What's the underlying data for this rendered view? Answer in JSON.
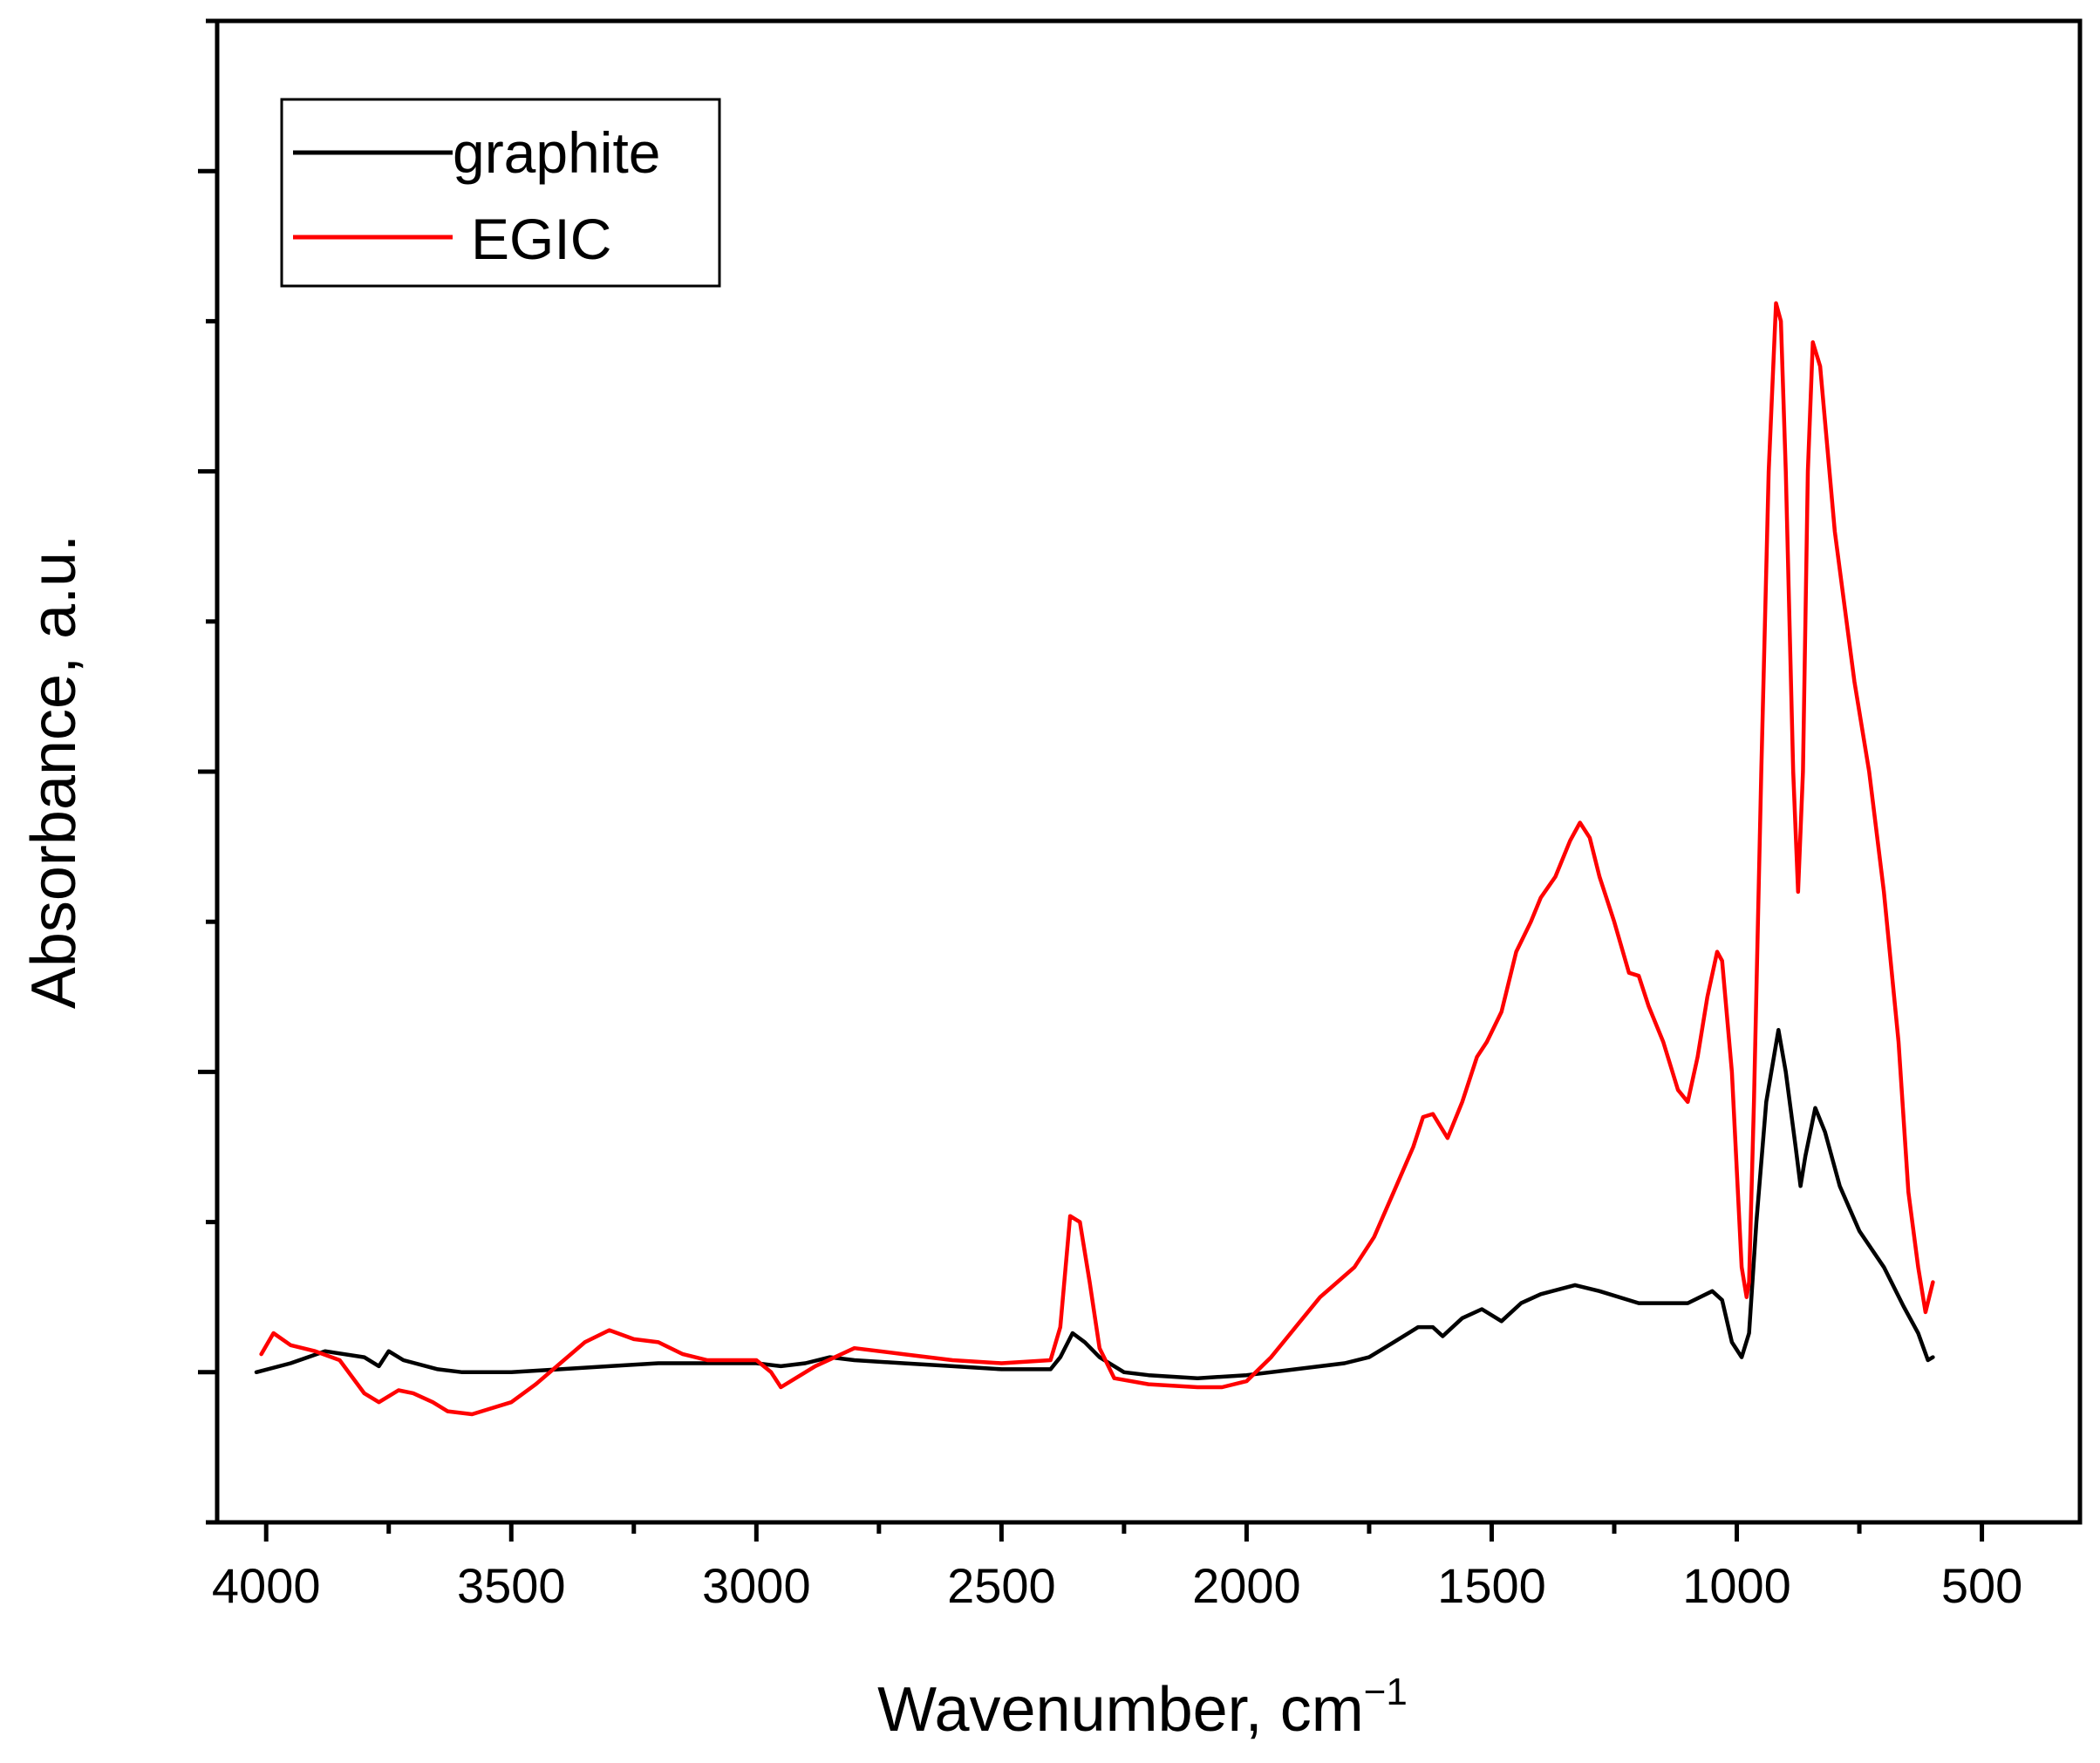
{
  "chart_data": {
    "type": "line",
    "title": "",
    "xlabel": "Wavenumber, cm",
    "xlabel_superscript": "−1",
    "ylabel": "Absorbance, a.u.",
    "xlim": [
      4100,
      300
    ],
    "ylim": [
      -0.5,
      4.5
    ],
    "x_reversed": true,
    "x_ticks": [
      4000,
      3500,
      3000,
      2500,
      2000,
      1500,
      1000,
      500
    ],
    "x_tick_labels": [
      "4000",
      "3500",
      "3000",
      "2500",
      "2000",
      "1500",
      "1000",
      "500"
    ],
    "y_tick_labels_shown": false,
    "grid": false,
    "legend": {
      "position": "top-left",
      "entries": [
        "graphite",
        "EGIC"
      ]
    },
    "series": [
      {
        "name": "graphite",
        "color": "#000000",
        "points": [
          [
            4020,
            0.0
          ],
          [
            3950,
            0.03
          ],
          [
            3880,
            0.07
          ],
          [
            3800,
            0.05
          ],
          [
            3770,
            0.02
          ],
          [
            3750,
            0.07
          ],
          [
            3720,
            0.04
          ],
          [
            3650,
            0.01
          ],
          [
            3600,
            0.0
          ],
          [
            3500,
            0.0
          ],
          [
            3400,
            0.01
          ],
          [
            3300,
            0.02
          ],
          [
            3200,
            0.03
          ],
          [
            3100,
            0.03
          ],
          [
            3000,
            0.03
          ],
          [
            2950,
            0.02
          ],
          [
            2900,
            0.03
          ],
          [
            2850,
            0.05
          ],
          [
            2800,
            0.04
          ],
          [
            2700,
            0.03
          ],
          [
            2600,
            0.02
          ],
          [
            2500,
            0.01
          ],
          [
            2400,
            0.01
          ],
          [
            2380,
            0.05
          ],
          [
            2355,
            0.13
          ],
          [
            2330,
            0.1
          ],
          [
            2300,
            0.05
          ],
          [
            2250,
            0.0
          ],
          [
            2200,
            -0.01
          ],
          [
            2100,
            -0.02
          ],
          [
            2000,
            -0.01
          ],
          [
            1900,
            0.01
          ],
          [
            1800,
            0.03
          ],
          [
            1750,
            0.05
          ],
          [
            1700,
            0.1
          ],
          [
            1650,
            0.15
          ],
          [
            1620,
            0.15
          ],
          [
            1600,
            0.12
          ],
          [
            1560,
            0.18
          ],
          [
            1520,
            0.21
          ],
          [
            1480,
            0.17
          ],
          [
            1440,
            0.23
          ],
          [
            1400,
            0.26
          ],
          [
            1330,
            0.29
          ],
          [
            1280,
            0.27
          ],
          [
            1200,
            0.23
          ],
          [
            1150,
            0.23
          ],
          [
            1100,
            0.23
          ],
          [
            1050,
            0.27
          ],
          [
            1030,
            0.24
          ],
          [
            1010,
            0.1
          ],
          [
            990,
            0.05
          ],
          [
            975,
            0.13
          ],
          [
            960,
            0.5
          ],
          [
            940,
            0.9
          ],
          [
            915,
            1.14
          ],
          [
            900,
            1.0
          ],
          [
            880,
            0.75
          ],
          [
            870,
            0.62
          ],
          [
            860,
            0.72
          ],
          [
            840,
            0.88
          ],
          [
            820,
            0.8
          ],
          [
            790,
            0.62
          ],
          [
            750,
            0.47
          ],
          [
            700,
            0.35
          ],
          [
            660,
            0.22
          ],
          [
            630,
            0.13
          ],
          [
            610,
            0.04
          ],
          [
            600,
            0.05
          ]
        ]
      },
      {
        "name": "EGIC",
        "color": "#ff0000",
        "points": [
          [
            4010,
            0.06
          ],
          [
            3985,
            0.13
          ],
          [
            3950,
            0.09
          ],
          [
            3900,
            0.07
          ],
          [
            3850,
            0.04
          ],
          [
            3800,
            -0.07
          ],
          [
            3770,
            -0.1
          ],
          [
            3730,
            -0.06
          ],
          [
            3700,
            -0.07
          ],
          [
            3660,
            -0.1
          ],
          [
            3630,
            -0.13
          ],
          [
            3580,
            -0.14
          ],
          [
            3500,
            -0.1
          ],
          [
            3450,
            -0.04
          ],
          [
            3400,
            0.03
          ],
          [
            3350,
            0.1
          ],
          [
            3300,
            0.14
          ],
          [
            3250,
            0.11
          ],
          [
            3200,
            0.1
          ],
          [
            3150,
            0.06
          ],
          [
            3100,
            0.04
          ],
          [
            3000,
            0.04
          ],
          [
            2970,
            0.0
          ],
          [
            2950,
            -0.05
          ],
          [
            2920,
            -0.02
          ],
          [
            2880,
            0.02
          ],
          [
            2840,
            0.05
          ],
          [
            2800,
            0.08
          ],
          [
            2700,
            0.06
          ],
          [
            2600,
            0.04
          ],
          [
            2500,
            0.03
          ],
          [
            2400,
            0.04
          ],
          [
            2380,
            0.15
          ],
          [
            2360,
            0.52
          ],
          [
            2340,
            0.5
          ],
          [
            2320,
            0.3
          ],
          [
            2300,
            0.08
          ],
          [
            2270,
            -0.02
          ],
          [
            2200,
            -0.04
          ],
          [
            2100,
            -0.05
          ],
          [
            2050,
            -0.05
          ],
          [
            2000,
            -0.03
          ],
          [
            1950,
            0.05
          ],
          [
            1900,
            0.15
          ],
          [
            1850,
            0.25
          ],
          [
            1780,
            0.35
          ],
          [
            1740,
            0.45
          ],
          [
            1700,
            0.6
          ],
          [
            1660,
            0.75
          ],
          [
            1640,
            0.85
          ],
          [
            1620,
            0.86
          ],
          [
            1590,
            0.78
          ],
          [
            1560,
            0.9
          ],
          [
            1530,
            1.05
          ],
          [
            1510,
            1.1
          ],
          [
            1480,
            1.2
          ],
          [
            1450,
            1.4
          ],
          [
            1420,
            1.5
          ],
          [
            1400,
            1.58
          ],
          [
            1370,
            1.65
          ],
          [
            1340,
            1.77
          ],
          [
            1320,
            1.83
          ],
          [
            1300,
            1.78
          ],
          [
            1280,
            1.65
          ],
          [
            1250,
            1.5
          ],
          [
            1220,
            1.33
          ],
          [
            1200,
            1.32
          ],
          [
            1180,
            1.22
          ],
          [
            1150,
            1.1
          ],
          [
            1120,
            0.94
          ],
          [
            1100,
            0.9
          ],
          [
            1080,
            1.05
          ],
          [
            1060,
            1.25
          ],
          [
            1040,
            1.4
          ],
          [
            1030,
            1.37
          ],
          [
            1010,
            1.0
          ],
          [
            990,
            0.35
          ],
          [
            980,
            0.25
          ],
          [
            975,
            0.3
          ],
          [
            965,
            0.9
          ],
          [
            950,
            2.0
          ],
          [
            935,
            3.0
          ],
          [
            920,
            3.56
          ],
          [
            910,
            3.5
          ],
          [
            900,
            3.0
          ],
          [
            885,
            2.0
          ],
          [
            875,
            1.6
          ],
          [
            865,
            2.0
          ],
          [
            855,
            3.0
          ],
          [
            845,
            3.43
          ],
          [
            830,
            3.35
          ],
          [
            800,
            2.8
          ],
          [
            760,
            2.3
          ],
          [
            730,
            2.0
          ],
          [
            700,
            1.6
          ],
          [
            670,
            1.1
          ],
          [
            650,
            0.6
          ],
          [
            630,
            0.35
          ],
          [
            615,
            0.2
          ],
          [
            600,
            0.3
          ]
        ]
      }
    ]
  }
}
